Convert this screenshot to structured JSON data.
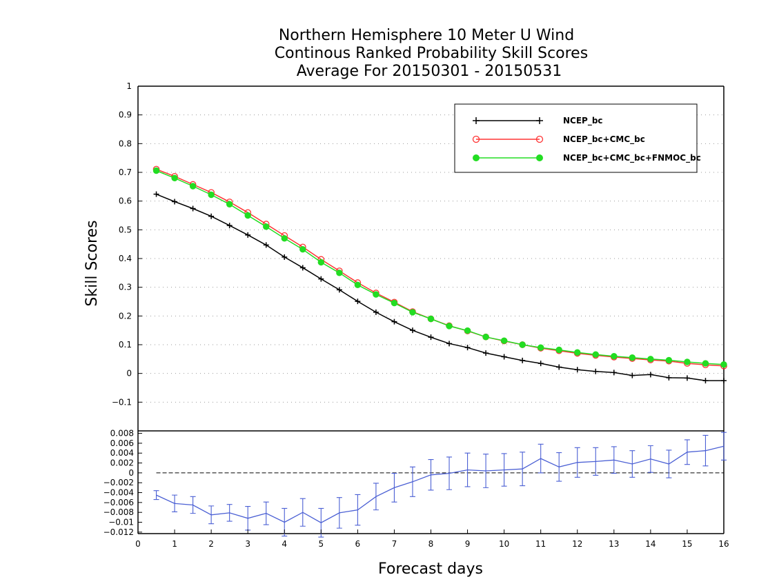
{
  "chart_data": [
    {
      "type": "line",
      "title": [
        "Northern Hemisphere 10 Meter U Wind",
        "Continous Ranked Probability Skill Scores",
        "Average For 20150301 - 20150531"
      ],
      "xlabel": "Forecast days",
      "ylabel": "Skill Scores",
      "xlim": [
        0,
        16
      ],
      "ylim": [
        -0.2,
        1.0
      ],
      "xticks": [
        "0",
        "1",
        "2",
        "3",
        "4",
        "5",
        "6",
        "7",
        "8",
        "9",
        "10",
        "11",
        "12",
        "13",
        "14",
        "15",
        "16"
      ],
      "yticks": [
        "1",
        "0.9",
        "0.8",
        "0.7",
        "0.6",
        "0.5",
        "0.4",
        "0.3",
        "0.2",
        "0.1",
        "0",
        "-0.1"
      ],
      "grid": true,
      "legend_position": "top-right",
      "x": [
        0.5,
        1.0,
        1.5,
        2.0,
        2.5,
        3.0,
        3.5,
        4.0,
        4.5,
        5.0,
        5.5,
        6.0,
        6.5,
        7.0,
        7.5,
        8.0,
        8.5,
        9.0,
        9.5,
        10.0,
        10.5,
        11.0,
        11.5,
        12.0,
        12.5,
        13.0,
        13.5,
        14.0,
        14.5,
        15.0,
        15.5,
        16.0
      ],
      "series": [
        {
          "name": "NCEP_bc",
          "color": "#000000",
          "marker": "plus",
          "values": [
            0.624,
            0.598,
            0.574,
            0.547,
            0.515,
            0.482,
            0.447,
            0.405,
            0.368,
            0.329,
            0.291,
            0.251,
            0.213,
            0.18,
            0.15,
            0.126,
            0.104,
            0.09,
            0.071,
            0.058,
            0.045,
            0.035,
            0.022,
            0.013,
            0.007,
            0.003,
            -0.007,
            -0.004,
            -0.015,
            -0.016,
            -0.025,
            -0.025
          ]
        },
        {
          "name": "NCEP_bc+CMC_bc",
          "color": "#ff3333",
          "marker": "open-circle",
          "values": [
            0.711,
            0.686,
            0.658,
            0.63,
            0.597,
            0.56,
            0.52,
            0.48,
            0.44,
            0.397,
            0.357,
            0.316,
            0.28,
            0.248,
            0.215,
            0.19,
            0.166,
            0.148,
            0.127,
            0.113,
            0.1,
            0.088,
            0.079,
            0.07,
            0.063,
            0.057,
            0.052,
            0.047,
            0.043,
            0.035,
            0.03,
            0.026
          ]
        },
        {
          "name": "NCEP_bc+CMC_bc+FNMOC_bc",
          "color": "#22dd22",
          "marker": "filled-circle",
          "values": [
            0.706,
            0.68,
            0.652,
            0.622,
            0.589,
            0.55,
            0.511,
            0.47,
            0.432,
            0.387,
            0.35,
            0.308,
            0.275,
            0.245,
            0.213,
            0.19,
            0.165,
            0.149,
            0.127,
            0.114,
            0.1,
            0.09,
            0.082,
            0.073,
            0.066,
            0.06,
            0.055,
            0.05,
            0.046,
            0.04,
            0.035,
            0.031
          ]
        }
      ]
    },
    {
      "type": "line",
      "xlim": [
        0,
        16
      ],
      "ylim": [
        -0.0123,
        0.0085
      ],
      "yticks": [
        "0.008",
        "0.006",
        "0.004",
        "0.002",
        "0",
        "-0.002",
        "-0.004",
        "-0.006",
        "-0.008",
        "-0.01",
        "-0.012"
      ],
      "reference_line": 0,
      "color": "#4a5fd4",
      "x": [
        0.5,
        1.0,
        1.5,
        2.0,
        2.5,
        3.0,
        3.5,
        4.0,
        4.5,
        5.0,
        5.5,
        6.0,
        6.5,
        7.0,
        7.5,
        8.0,
        8.5,
        9.0,
        9.5,
        10.0,
        10.5,
        11.0,
        11.5,
        12.0,
        12.5,
        13.0,
        13.5,
        14.0,
        14.5,
        15.0,
        15.5,
        16.0
      ],
      "values": [
        -0.0045,
        -0.0062,
        -0.0065,
        -0.0085,
        -0.0081,
        -0.0092,
        -0.0082,
        -0.01,
        -0.008,
        -0.0101,
        -0.0081,
        -0.0075,
        -0.0048,
        -0.003,
        -0.0018,
        -0.0004,
        -0.0001,
        0.0006,
        0.0004,
        0.0006,
        0.0008,
        0.0029,
        0.0012,
        0.0021,
        0.0023,
        0.0026,
        0.0018,
        0.0028,
        0.0018,
        0.0042,
        0.0045,
        0.0054
      ],
      "error": [
        0.0009,
        0.0017,
        0.0017,
        0.0018,
        0.0017,
        0.0024,
        0.0023,
        0.0028,
        0.0028,
        0.0029,
        0.0031,
        0.0031,
        0.0027,
        0.0029,
        0.003,
        0.0031,
        0.0033,
        0.0034,
        0.0034,
        0.0033,
        0.0034,
        0.0029,
        0.0029,
        0.003,
        0.0028,
        0.0027,
        0.0027,
        0.0027,
        0.0028,
        0.0025,
        0.0031,
        0.0028
      ]
    }
  ]
}
